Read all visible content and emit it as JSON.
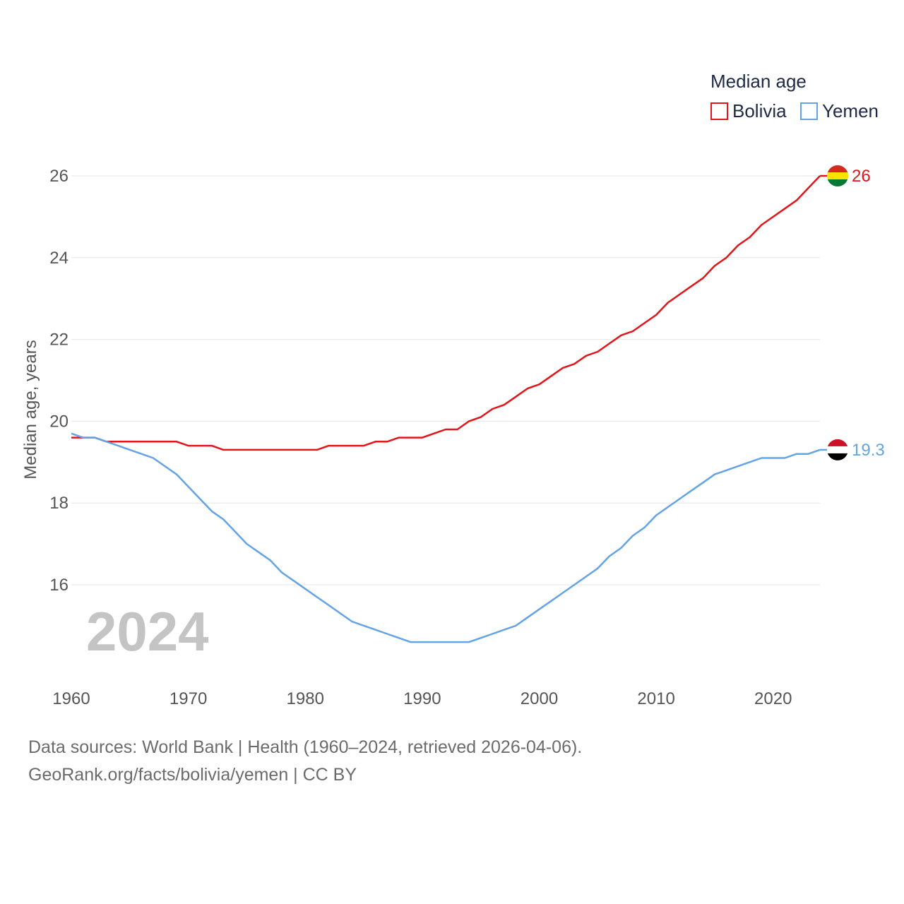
{
  "chart_data": {
    "type": "line",
    "legend_title": "Median age",
    "ylabel": "Median age, years",
    "xlabel": "",
    "year_label": "2024",
    "xlim": [
      1960,
      2024
    ],
    "ylim": [
      14,
      26.8
    ],
    "x_ticks": [
      1960,
      1970,
      1980,
      1990,
      2000,
      2010,
      2020
    ],
    "y_ticks": [
      16,
      18,
      20,
      22,
      24,
      26
    ],
    "grid": true,
    "legend_position": "top-right",
    "x": [
      1960,
      1961,
      1962,
      1963,
      1964,
      1965,
      1966,
      1967,
      1968,
      1969,
      1970,
      1971,
      1972,
      1973,
      1974,
      1975,
      1976,
      1977,
      1978,
      1979,
      1980,
      1981,
      1982,
      1983,
      1984,
      1985,
      1986,
      1987,
      1988,
      1989,
      1990,
      1991,
      1992,
      1993,
      1994,
      1995,
      1996,
      1997,
      1998,
      1999,
      2000,
      2001,
      2002,
      2003,
      2004,
      2005,
      2006,
      2007,
      2008,
      2009,
      2010,
      2011,
      2012,
      2013,
      2014,
      2015,
      2016,
      2017,
      2018,
      2019,
      2020,
      2021,
      2022,
      2023,
      2024
    ],
    "series": [
      {
        "name": "Bolivia",
        "color": "#e3141a",
        "end_label": "26",
        "values": [
          19.6,
          19.6,
          19.6,
          19.5,
          19.5,
          19.5,
          19.5,
          19.5,
          19.5,
          19.5,
          19.4,
          19.4,
          19.4,
          19.3,
          19.3,
          19.3,
          19.3,
          19.3,
          19.3,
          19.3,
          19.3,
          19.3,
          19.4,
          19.4,
          19.4,
          19.4,
          19.5,
          19.5,
          19.6,
          19.6,
          19.6,
          19.7,
          19.8,
          19.8,
          20.0,
          20.1,
          20.3,
          20.4,
          20.6,
          20.8,
          20.9,
          21.1,
          21.3,
          21.4,
          21.6,
          21.7,
          21.9,
          22.1,
          22.2,
          22.4,
          22.6,
          22.9,
          23.1,
          23.3,
          23.5,
          23.8,
          24.0,
          24.3,
          24.5,
          24.8,
          25.0,
          25.2,
          25.4,
          25.7,
          26.0
        ]
      },
      {
        "name": "Yemen",
        "color": "#63a4e6",
        "end_label": "19.3",
        "values": [
          19.7,
          19.6,
          19.6,
          19.5,
          19.4,
          19.3,
          19.2,
          19.1,
          18.9,
          18.7,
          18.4,
          18.1,
          17.8,
          17.6,
          17.3,
          17.0,
          16.8,
          16.6,
          16.3,
          16.1,
          15.9,
          15.7,
          15.5,
          15.3,
          15.1,
          15.0,
          14.9,
          14.8,
          14.7,
          14.6,
          14.6,
          14.6,
          14.6,
          14.6,
          14.6,
          14.7,
          14.8,
          14.9,
          15.0,
          15.2,
          15.4,
          15.6,
          15.8,
          16.0,
          16.2,
          16.4,
          16.7,
          16.9,
          17.2,
          17.4,
          17.7,
          17.9,
          18.1,
          18.3,
          18.5,
          18.7,
          18.8,
          18.9,
          19.0,
          19.1,
          19.1,
          19.1,
          19.2,
          19.2,
          19.3
        ]
      }
    ]
  },
  "footer": {
    "line1": "Data sources: World Bank | Health (1960–2024, retrieved 2026-04-06).",
    "line2": "GeoRank.org/facts/bolivia/yemen | CC BY"
  },
  "colors": {
    "grid": "#e6e6e6",
    "bolivia_flag": [
      "#d52b1e",
      "#f9e300",
      "#007934"
    ],
    "yemen_flag": [
      "#ce1126",
      "#ffffff",
      "#000000"
    ]
  }
}
